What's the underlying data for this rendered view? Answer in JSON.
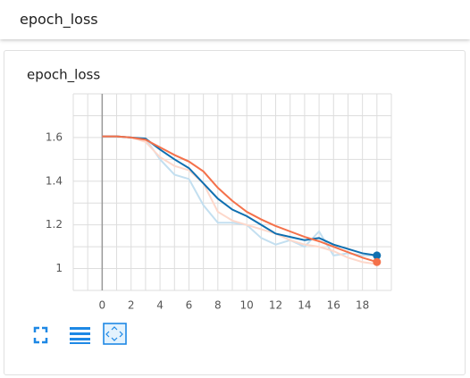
{
  "header": {
    "title": "epoch_loss"
  },
  "chart_data": {
    "type": "line",
    "title": "epoch_loss",
    "x": [
      0,
      1,
      2,
      3,
      4,
      5,
      6,
      7,
      8,
      9,
      10,
      11,
      12,
      13,
      14,
      15,
      16,
      17,
      18,
      19
    ],
    "xlim": [
      -2,
      20
    ],
    "xticks": [
      0,
      2,
      4,
      6,
      8,
      10,
      12,
      14,
      16,
      18
    ],
    "xgrid": [
      -2,
      -1,
      0,
      1,
      2,
      3,
      4,
      5,
      6,
      7,
      8,
      9,
      10,
      11,
      12,
      13,
      14,
      15,
      16,
      17,
      18,
      19,
      20
    ],
    "ylim": [
      0.9,
      1.8
    ],
    "yticks": [
      1,
      1.2,
      1.4,
      1.6
    ],
    "ygrid": [
      0.9,
      1.0,
      1.1,
      1.2,
      1.3,
      1.4,
      1.5,
      1.6,
      1.7,
      1.8
    ],
    "grid": true,
    "series": [
      {
        "color": "#c3dff0",
        "values": [
          1.605,
          1.605,
          1.6,
          1.595,
          1.5,
          1.43,
          1.41,
          1.29,
          1.21,
          1.21,
          1.2,
          1.14,
          1.11,
          1.13,
          1.1,
          1.17,
          1.06,
          1.07,
          1.06,
          1.06
        ]
      },
      {
        "color": "#fdd8cb",
        "values": [
          1.605,
          1.605,
          1.6,
          1.58,
          1.51,
          1.47,
          1.45,
          1.39,
          1.26,
          1.22,
          1.2,
          1.18,
          1.16,
          1.13,
          1.11,
          1.1,
          1.08,
          1.05,
          1.03,
          1.02
        ]
      },
      {
        "color": "#0f6fb0",
        "marker_last": true,
        "values": [
          1.605,
          1.605,
          1.6,
          1.595,
          1.545,
          1.5,
          1.46,
          1.39,
          1.32,
          1.27,
          1.24,
          1.2,
          1.16,
          1.145,
          1.13,
          1.14,
          1.11,
          1.09,
          1.07,
          1.06
        ]
      },
      {
        "color": "#f4714a",
        "marker_last": true,
        "values": [
          1.605,
          1.605,
          1.6,
          1.59,
          1.555,
          1.52,
          1.49,
          1.445,
          1.37,
          1.31,
          1.26,
          1.225,
          1.195,
          1.17,
          1.145,
          1.125,
          1.1,
          1.075,
          1.05,
          1.03
        ]
      }
    ]
  }
}
